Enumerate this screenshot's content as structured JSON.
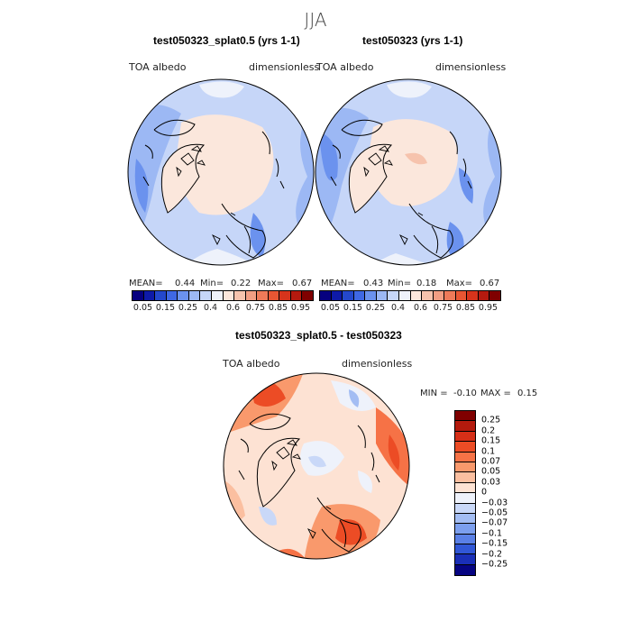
{
  "season": "JJA",
  "panels": [
    {
      "title": "test050323_splat0.5 (yrs 1-1)",
      "variable": "TOA albedo",
      "units": "dimensionless",
      "mean_label": "MEAN=",
      "mean": "0.44",
      "min_label": "Min=",
      "min": "0.22",
      "max_label": "Max=",
      "max": "0.67"
    },
    {
      "title": "test050323 (yrs 1-1)",
      "variable": "TOA albedo",
      "units": "dimensionless",
      "mean_label": "MEAN=",
      "mean": "0.43",
      "min_label": "Min=",
      "min": "0.18",
      "max_label": "Max=",
      "max": "0.67"
    }
  ],
  "abs_colorbar": {
    "ticks": [
      "0.05",
      "0.15",
      "0.25",
      "0.4",
      "0.6",
      "0.75",
      "0.85",
      "0.95"
    ],
    "colors": [
      "#06007f",
      "#0e1aa8",
      "#2448cc",
      "#3f68e4",
      "#6b92ee",
      "#9cb8f4",
      "#c6d6f8",
      "#eef2fb",
      "#fbe7dc",
      "#f6c3ad",
      "#f29e83",
      "#ee7a59",
      "#e85633",
      "#d7341c",
      "#b51a0f",
      "#7f0000"
    ]
  },
  "diff_panel": {
    "title": "test050323_splat0.5 - test050323",
    "variable": "TOA albedo",
    "units": "dimensionless",
    "min_label": "MIN =",
    "min": "-0.10",
    "max_label": "MAX =",
    "max": "0.15"
  },
  "diff_colorbar": {
    "labels": [
      "0.25",
      "0.2",
      "0.15",
      "0.1",
      "0.07",
      "0.05",
      "0.03",
      "0",
      "−0.03",
      "−0.05",
      "−0.07",
      "−0.1",
      "−0.15",
      "−0.2",
      "−0.25"
    ],
    "colors": [
      "#7f0000",
      "#b41a0d",
      "#d62f17",
      "#ec4c25",
      "#f67246",
      "#f9996c",
      "#fbbfa0",
      "#fde2d3",
      "#eef2fb",
      "#c9d8f8",
      "#a3bdf3",
      "#7c9fee",
      "#5a80e6",
      "#3157d6",
      "#1a2fb7",
      "#060482"
    ]
  }
}
